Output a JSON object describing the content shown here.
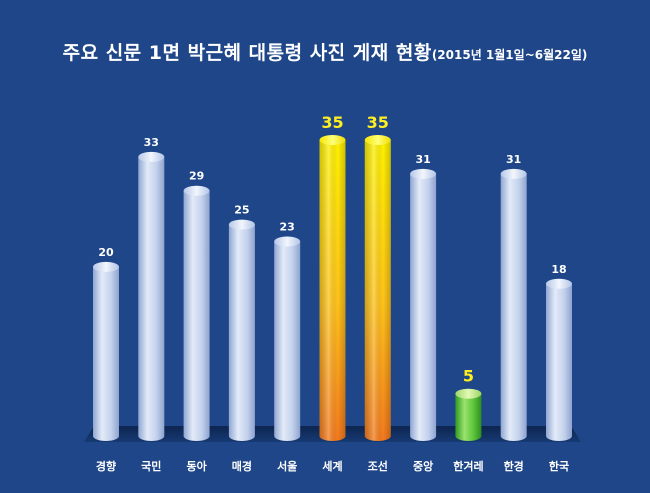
{
  "chart_data": {
    "type": "bar",
    "title": "주요 신문 1면 박근혜 대통령 사진 게재 현황",
    "subtitle": "(2015년 1월1일~6월22일)",
    "categories": [
      "경향",
      "국민",
      "동아",
      "매경",
      "서울",
      "세계",
      "조선",
      "중앙",
      "한겨레",
      "한경",
      "한국"
    ],
    "values": [
      20,
      33,
      29,
      25,
      23,
      35,
      35,
      31,
      5,
      31,
      18
    ],
    "highlight": [
      "normal",
      "normal",
      "normal",
      "normal",
      "normal",
      "max",
      "max",
      "normal",
      "min",
      "normal",
      "normal"
    ],
    "xlabel": "",
    "ylabel": "",
    "ylim": [
      0,
      35
    ],
    "grid": false,
    "legend": "none",
    "colors": {
      "background": "#1e4688",
      "bar_normal": "#c5d3ec",
      "bar_max": "#ffd400",
      "bar_min": "#5cc43a",
      "label_normal": "#ffffff",
      "label_highlight": "#ffee22"
    }
  }
}
